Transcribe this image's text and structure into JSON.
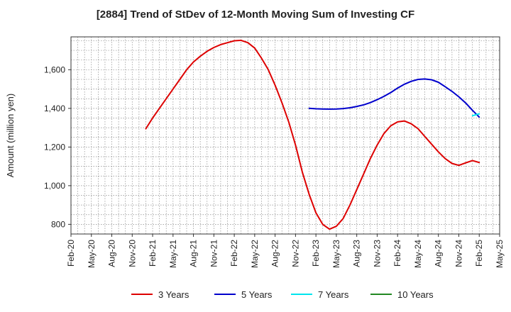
{
  "chart_data": {
    "type": "line",
    "title": "[2884]  Trend of StDev of 12-Month Moving Sum of Investing CF",
    "ylabel": "Amount (million yen)",
    "xlabel": "",
    "ylim": [
      750,
      1770
    ],
    "yticks": [
      800,
      1000,
      1200,
      1400,
      1600
    ],
    "ytick_labels": [
      "800",
      "1,000",
      "1,200",
      "1,400",
      "1,600"
    ],
    "xrange": [
      "2020-02",
      "2025-05"
    ],
    "xticks": [
      "Feb-20",
      "May-20",
      "Aug-20",
      "Nov-20",
      "Feb-21",
      "May-21",
      "Aug-21",
      "Nov-21",
      "Feb-22",
      "May-22",
      "Aug-22",
      "Nov-22",
      "Feb-23",
      "May-23",
      "Aug-23",
      "Nov-23",
      "Feb-24",
      "May-24",
      "Aug-24",
      "Nov-24",
      "Feb-25",
      "May-25"
    ],
    "grid": true,
    "grid_style": "dotted",
    "legend_position": "bottom",
    "series": [
      {
        "name": "3 Years",
        "color": "#dd0000",
        "x": [
          "2021-01",
          "2021-02",
          "2021-03",
          "2021-04",
          "2021-05",
          "2021-06",
          "2021-07",
          "2021-08",
          "2021-09",
          "2021-10",
          "2021-11",
          "2021-12",
          "2022-01",
          "2022-02",
          "2022-03",
          "2022-04",
          "2022-05",
          "2022-06",
          "2022-07",
          "2022-08",
          "2022-09",
          "2022-10",
          "2022-11",
          "2022-12",
          "2023-01",
          "2023-02",
          "2023-03",
          "2023-04",
          "2023-05",
          "2023-06",
          "2023-07",
          "2023-08",
          "2023-09",
          "2023-10",
          "2023-11",
          "2023-12",
          "2024-01",
          "2024-02",
          "2024-03",
          "2024-04",
          "2024-05",
          "2024-06",
          "2024-07",
          "2024-08",
          "2024-09",
          "2024-10",
          "2024-11",
          "2024-12",
          "2025-01",
          "2025-02"
        ],
        "values": [
          1295,
          1350,
          1400,
          1450,
          1500,
          1550,
          1600,
          1640,
          1670,
          1695,
          1715,
          1730,
          1740,
          1750,
          1752,
          1740,
          1712,
          1660,
          1600,
          1520,
          1430,
          1330,
          1210,
          1070,
          955,
          860,
          800,
          775,
          790,
          830,
          900,
          980,
          1060,
          1140,
          1210,
          1270,
          1310,
          1330,
          1335,
          1320,
          1295,
          1255,
          1215,
          1175,
          1140,
          1115,
          1105,
          1118,
          1130,
          1120
        ]
      },
      {
        "name": "5 Years",
        "color": "#0000cc",
        "x": [
          "2023-01",
          "2023-02",
          "2023-03",
          "2023-04",
          "2023-05",
          "2023-06",
          "2023-07",
          "2023-08",
          "2023-09",
          "2023-10",
          "2023-11",
          "2023-12",
          "2024-01",
          "2024-02",
          "2024-03",
          "2024-04",
          "2024-05",
          "2024-06",
          "2024-07",
          "2024-08",
          "2024-09",
          "2024-10",
          "2024-11",
          "2024-12",
          "2025-01",
          "2025-02"
        ],
        "values": [
          1400,
          1398,
          1397,
          1396,
          1397,
          1399,
          1403,
          1410,
          1418,
          1430,
          1445,
          1462,
          1482,
          1505,
          1525,
          1540,
          1550,
          1552,
          1548,
          1535,
          1512,
          1488,
          1460,
          1428,
          1390,
          1355
        ]
      },
      {
        "name": "7 Years",
        "color": "#00e5ee",
        "x": [
          "2025-01",
          "2025-02"
        ],
        "values": [
          1362,
          1372
        ]
      },
      {
        "name": "10 Years",
        "color": "#228822",
        "x": [],
        "values": []
      }
    ]
  }
}
